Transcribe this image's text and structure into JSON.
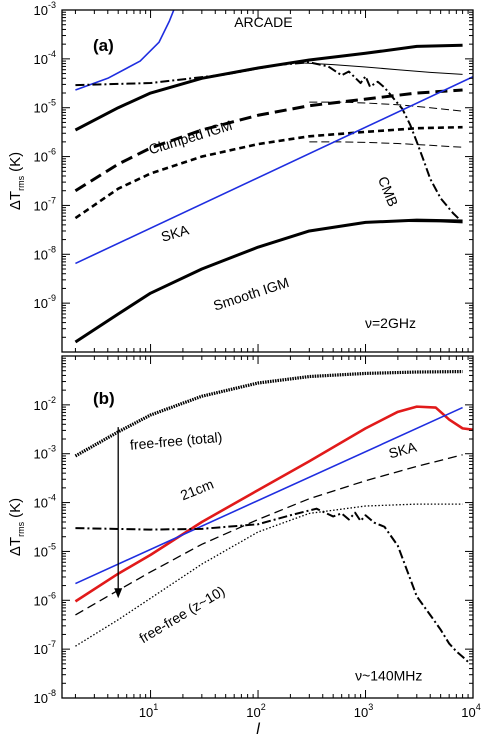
{
  "figure": {
    "xlabel": "l",
    "x_tick_labels": [
      "10",
      "10",
      "10",
      "10"
    ],
    "x_tick_exps": [
      "1",
      "2",
      "3",
      "4"
    ]
  },
  "chart_data": [
    {
      "type": "line",
      "panel_label": "(a)",
      "ylabel_main": "ΔT",
      "ylabel_sub": "rms",
      "ylabel_unit": "(K)",
      "note": "ν=2GHz",
      "xlim": [
        1.5,
        10000
      ],
      "ylim": [
        1e-10,
        0.001
      ],
      "xscale": "log",
      "yscale": "log",
      "y_ticks": [
        {
          "base": "10",
          "exp": "-3",
          "value": 0.001
        },
        {
          "base": "10",
          "exp": "-4",
          "value": 0.0001
        },
        {
          "base": "10",
          "exp": "-5",
          "value": 1e-05
        },
        {
          "base": "10",
          "exp": "-6",
          "value": 1e-06
        },
        {
          "base": "10",
          "exp": "-7",
          "value": 1e-07
        },
        {
          "base": "10",
          "exp": "-8",
          "value": 1e-08
        },
        {
          "base": "10",
          "exp": "-9",
          "value": 1e-09
        }
      ],
      "annotations": [
        {
          "text": "ARCADE",
          "at": [
            60,
            0.00045
          ],
          "rotate": 0
        },
        {
          "text": "Clumped IGM",
          "at": [
            10,
            1.1e-06
          ],
          "rotate": -17
        },
        {
          "text": "SKA",
          "at": [
            13,
            1.8e-08
          ],
          "rotate": -16
        },
        {
          "text": "Smooth IGM",
          "at": [
            40,
            7e-10
          ],
          "rotate": -18
        },
        {
          "text": "CMB",
          "at": [
            1300,
            3.5e-07
          ],
          "rotate": 68
        }
      ],
      "series": [
        {
          "style": "blue",
          "x": [
            2,
            4,
            8,
            12,
            15,
            17
          ],
          "y": [
            2.3e-05,
            4e-05,
            9e-05,
            0.00022,
            0.0006,
            0.0012
          ]
        },
        {
          "style": "thick-solid",
          "x": [
            2,
            5,
            10,
            30,
            100,
            300,
            1000,
            3000,
            8000
          ],
          "y": [
            3.5e-06,
            1e-05,
            2e-05,
            4e-05,
            6.5e-05,
            9.5e-05,
            0.00013,
            0.00018,
            0.00019
          ]
        },
        {
          "style": "thin-solid",
          "x": [
            200,
            500,
            1000,
            2000,
            4000,
            8000
          ],
          "y": [
            8.5e-05,
            7.6e-05,
            6.8e-05,
            6e-05,
            5.3e-05,
            4.8e-05
          ]
        },
        {
          "style": "dash-dot",
          "x": [
            2,
            10,
            50,
            150,
            300,
            450,
            600,
            700,
            900,
            1000,
            1100,
            1300,
            1500,
            1800,
            2200,
            2600,
            3000,
            3500,
            4000,
            5000,
            6500,
            8000
          ],
          "y": [
            2.9e-05,
            3.2e-05,
            4.8e-05,
            7.5e-05,
            8.5e-05,
            7e-05,
            4.6e-05,
            5.5e-05,
            3.2e-05,
            4.4e-05,
            2.7e-05,
            3.4e-05,
            2.6e-05,
            1.6e-05,
            9.5e-06,
            4.5e-06,
            2e-06,
            8e-07,
            3.5e-07,
            1.4e-07,
            7e-08,
            4.5e-08
          ]
        },
        {
          "style": "thick-dash-long",
          "x": [
            2,
            5,
            10,
            30,
            100,
            300,
            1000,
            3000,
            8000
          ],
          "y": [
            2e-07,
            7e-07,
            1.5e-06,
            3.5e-06,
            7e-06,
            1.1e-05,
            1.5e-05,
            2e-05,
            2.3e-05
          ]
        },
        {
          "style": "thick-dash-short",
          "x": [
            2,
            5,
            10,
            30,
            100,
            300,
            1000,
            3000,
            8000
          ],
          "y": [
            5.5e-08,
            2.2e-07,
            4.5e-07,
            1e-06,
            1.8e-06,
            2.6e-06,
            3.2e-06,
            3.8e-06,
            4e-06
          ]
        },
        {
          "style": "thin-dash",
          "x": [
            300,
            600,
            1000,
            2000,
            4000,
            8000
          ],
          "y": [
            1.3e-05,
            1.3e-05,
            1.25e-05,
            1.15e-05,
            1e-05,
            8.5e-06
          ]
        },
        {
          "style": "thin-dash",
          "x": [
            300,
            600,
            1000,
            2000,
            4000,
            8000
          ],
          "y": [
            2e-06,
            2e-06,
            1.95e-06,
            1.85e-06,
            1.7e-06,
            1.55e-06
          ]
        },
        {
          "style": "blue",
          "x": [
            2,
            10000
          ],
          "y": [
            6.5e-09,
            4.3e-05
          ]
        },
        {
          "style": "thick-solid",
          "x": [
            2,
            5,
            10,
            30,
            100,
            300,
            1000,
            3000,
            8000
          ],
          "y": [
            1.6e-10,
            6e-10,
            1.6e-09,
            5e-09,
            1.4e-08,
            3e-08,
            4.5e-08,
            5e-08,
            4.8e-08
          ]
        },
        {
          "style": "thin-solid",
          "x": [
            2500,
            5000,
            8000
          ],
          "y": [
            4.7e-08,
            4.6e-08,
            4.4e-08
          ]
        }
      ]
    },
    {
      "type": "line",
      "panel_label": "(b)",
      "ylabel_main": "ΔT",
      "ylabel_sub": "rms",
      "ylabel_unit": "(K)",
      "note": "ν~140MHz",
      "xlim": [
        1.5,
        10000
      ],
      "ylim": [
        1e-08,
        0.1
      ],
      "xscale": "log",
      "yscale": "log",
      "y_ticks": [
        {
          "base": "10",
          "exp": "-2",
          "value": 0.01
        },
        {
          "base": "10",
          "exp": "-3",
          "value": 0.001
        },
        {
          "base": "10",
          "exp": "-4",
          "value": 0.0001
        },
        {
          "base": "10",
          "exp": "-5",
          "value": 1e-05
        },
        {
          "base": "10",
          "exp": "-6",
          "value": 1e-06
        },
        {
          "base": "10",
          "exp": "-7",
          "value": 1e-07
        },
        {
          "base": "10",
          "exp": "-8",
          "value": 1e-08
        }
      ],
      "annotations": [
        {
          "text": "free-free (total)",
          "at": [
            6.5,
            0.0012
          ],
          "rotate": -5
        },
        {
          "text": "SKA",
          "at": [
            1700,
            0.0008
          ],
          "rotate": -15
        },
        {
          "text": "21cm",
          "at": [
            20,
            0.00011
          ],
          "rotate": -22
        },
        {
          "text": "free-free (z~10)",
          "at": [
            8.5,
            1.3e-07
          ],
          "rotate": -31
        },
        {
          "text": "ν~140MHz",
          "at": [
            800,
            2.3e-08
          ],
          "rotate": 0
        }
      ],
      "arrow": {
        "x": 5,
        "y_from": 0.0035,
        "y_to": 1.1e-06
      },
      "series": [
        {
          "style": "thick-dotted",
          "x": [
            2,
            5,
            10,
            30,
            100,
            300,
            1000,
            3000,
            8000
          ],
          "y": [
            0.0009,
            0.0028,
            0.0062,
            0.015,
            0.028,
            0.038,
            0.044,
            0.047,
            0.048
          ]
        },
        {
          "style": "red",
          "x": [
            2,
            5,
            10,
            30,
            100,
            300,
            1000,
            2000,
            3000,
            4500,
            6000,
            8000,
            10000
          ],
          "y": [
            9.5e-07,
            3.5e-06,
            8.5e-06,
            4e-05,
            0.00018,
            0.0007,
            0.0033,
            0.0072,
            0.0092,
            0.0088,
            0.005,
            0.0033,
            0.0031
          ]
        },
        {
          "style": "blue",
          "x": [
            2,
            8000
          ],
          "y": [
            2.2e-06,
            0.0088
          ]
        },
        {
          "style": "dash",
          "x": [
            2,
            5,
            10,
            30,
            100,
            300,
            1000,
            3000,
            8000
          ],
          "y": [
            5e-07,
            1.6e-06,
            3.8e-06,
            1.4e-05,
            4.5e-05,
            0.00012,
            0.00028,
            0.00055,
            0.00095
          ]
        },
        {
          "style": "dash-dot",
          "x": [
            2,
            10,
            30,
            100,
            200,
            350,
            500,
            600,
            700,
            800,
            900,
            1000,
            1200,
            1500,
            2000,
            2500,
            3000,
            4000,
            5000,
            6000,
            7000,
            8000,
            9000
          ],
          "y": [
            3e-05,
            2.8e-05,
            2.9e-05,
            3.6e-05,
            5.5e-05,
            7.5e-05,
            5.2e-05,
            6e-05,
            4.5e-05,
            6.2e-05,
            4.2e-05,
            5.5e-05,
            3.9e-05,
            3.2e-05,
            1.3e-05,
            3.5e-06,
            1.2e-06,
            5e-07,
            2.5e-07,
            1.3e-07,
            9e-08,
            7e-08,
            5.5e-08
          ]
        },
        {
          "style": "dotted",
          "x": [
            2,
            5,
            10,
            30,
            100,
            300,
            1000,
            3000,
            8000
          ],
          "y": [
            1.15e-07,
            4e-07,
            1.1e-06,
            5.5e-06,
            2.5e-05,
            6e-05,
            8.5e-05,
            9.3e-05,
            9.3e-05
          ]
        }
      ]
    }
  ]
}
